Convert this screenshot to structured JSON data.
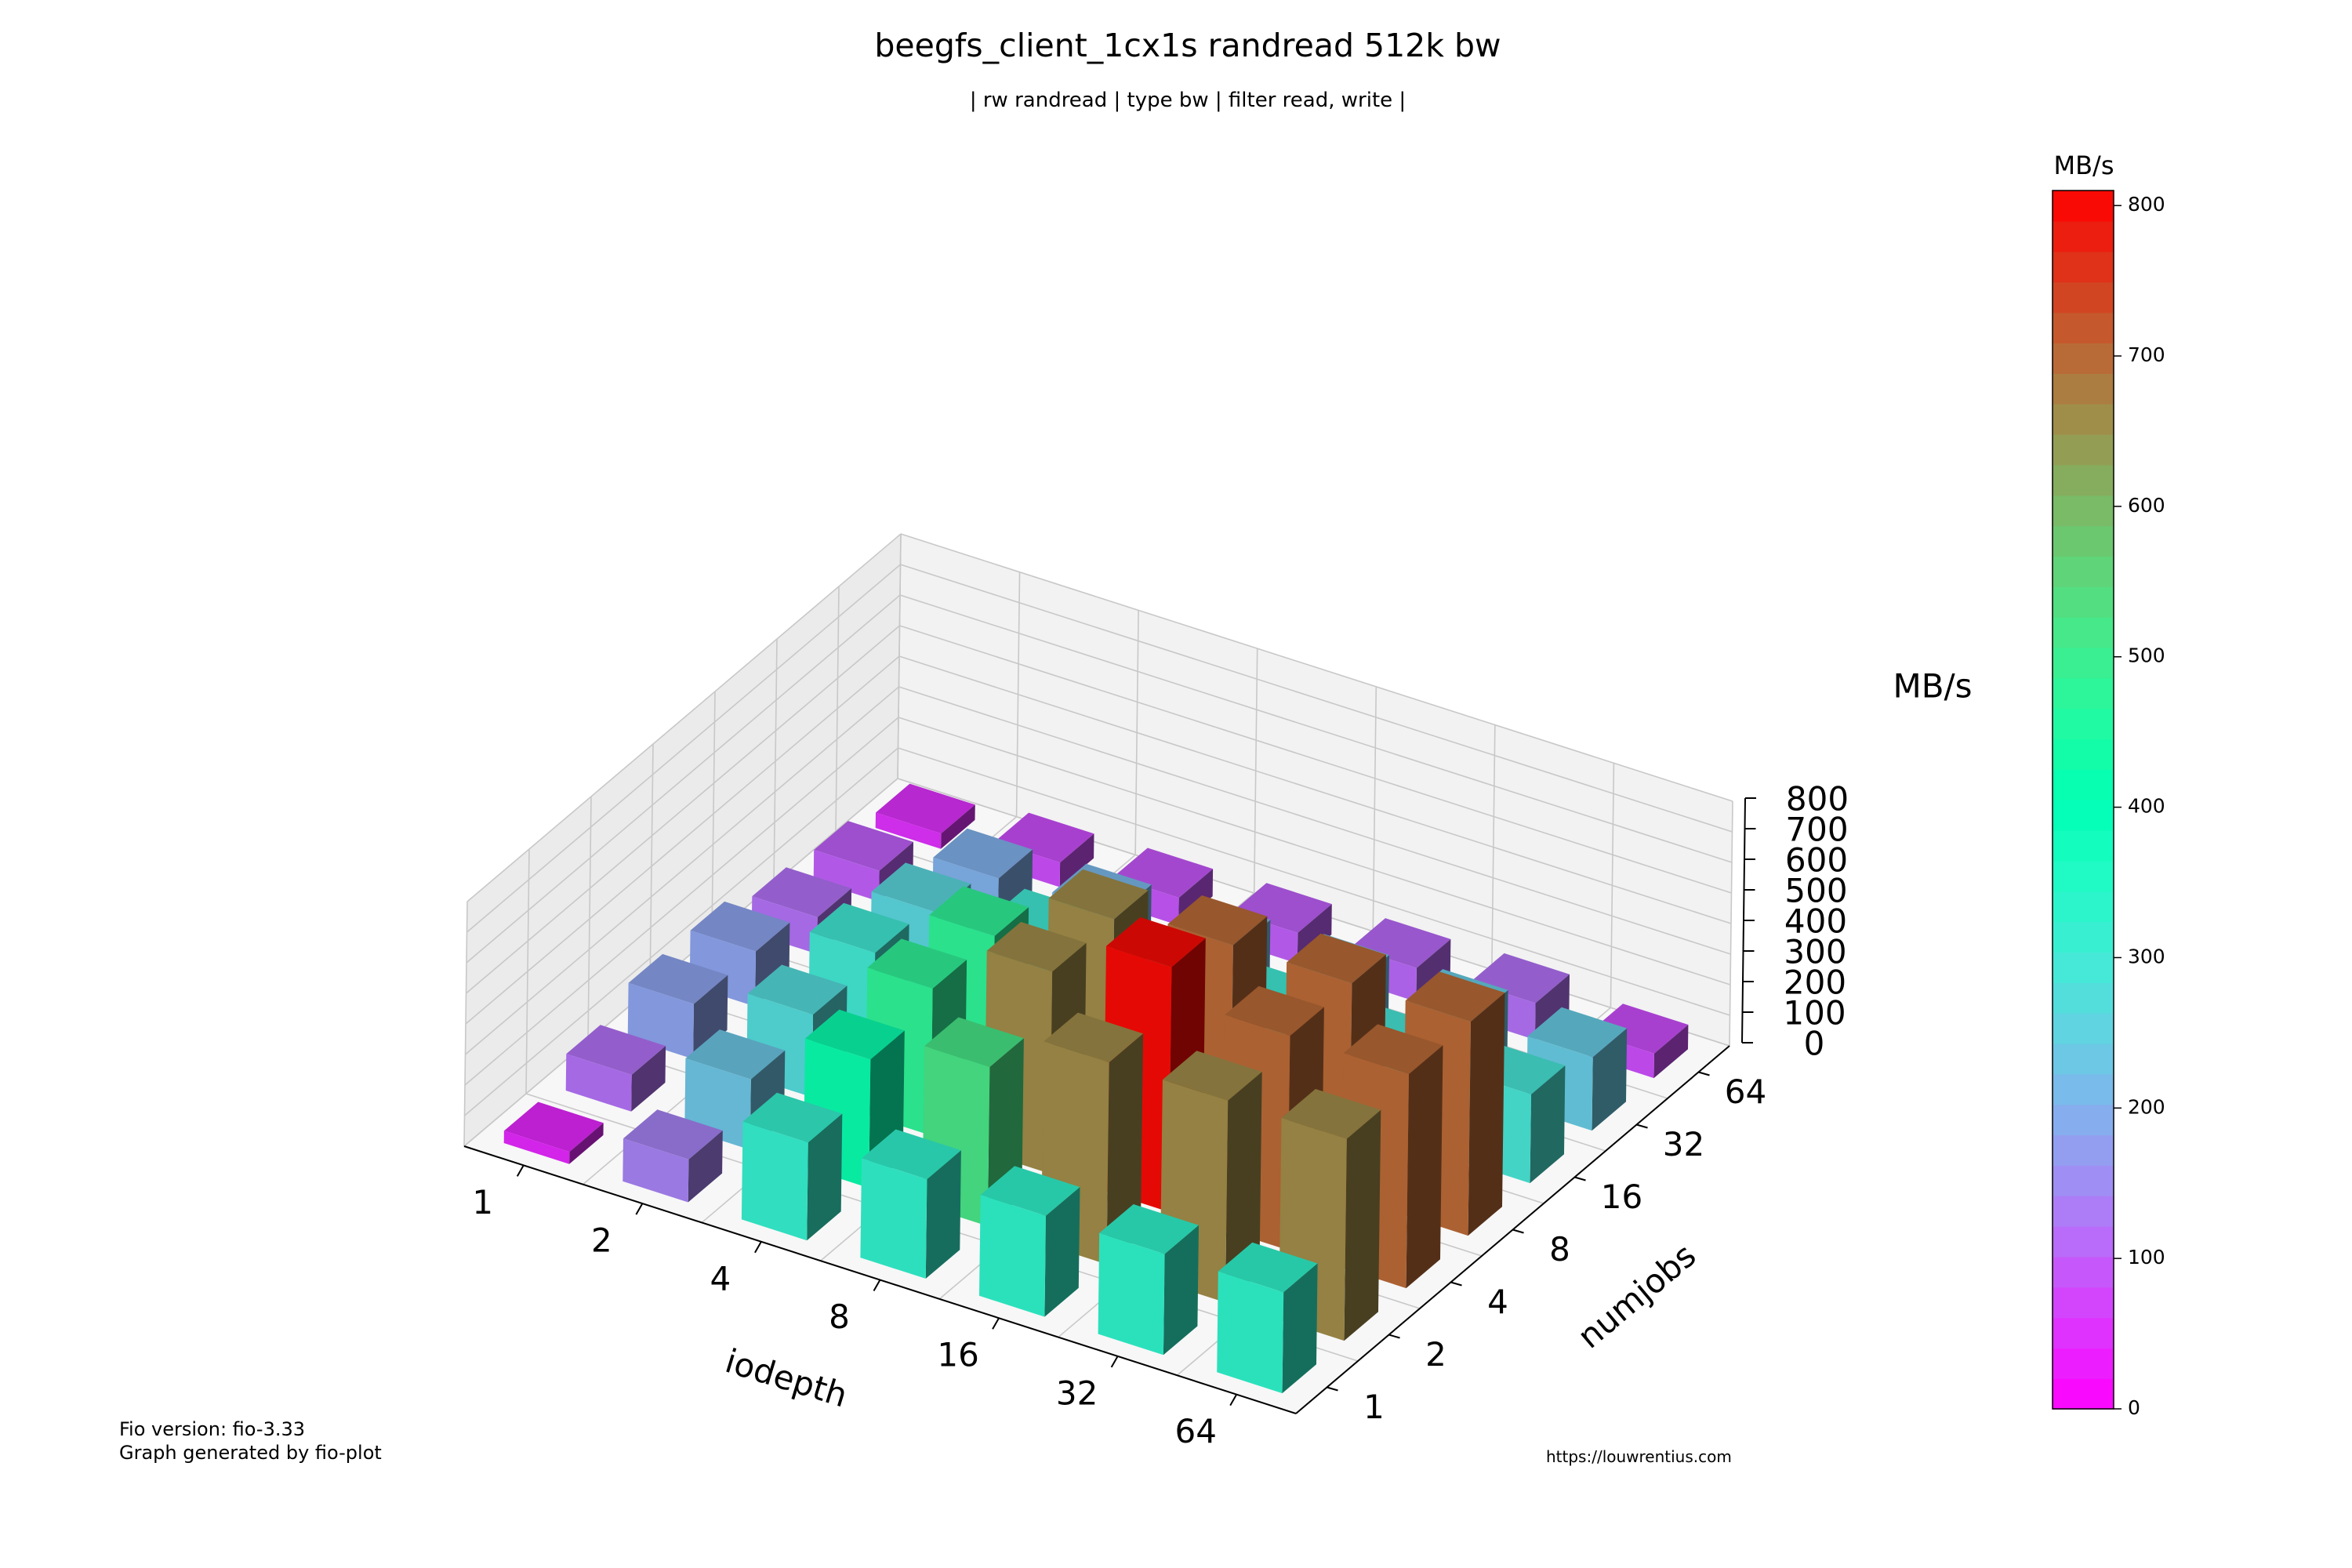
{
  "title": "beegfs_client_1cx1s randread 512k bw",
  "subtitle": "| rw randread | type bw | filter read, write |",
  "footer": {
    "fio_version": "Fio version: fio-3.33",
    "generator": "Graph generated by fio-plot",
    "url": "https://louwrentius.com"
  },
  "colorbar": {
    "label": "MB/s",
    "ticks": [
      0,
      100,
      200,
      300,
      400,
      500,
      600,
      700,
      800
    ],
    "range": [
      0,
      810
    ],
    "colormap": "rainbow"
  },
  "chart_data": {
    "type": "bar3d",
    "title": "beegfs_client_1cx1s randread 512k bw",
    "subtitle": "| rw randread | type bw | filter read, write |",
    "xlabel": "iodepth",
    "ylabel": "numjobs",
    "zlabel": "MB/s",
    "x_categories": [
      "1",
      "2",
      "4",
      "8",
      "16",
      "32",
      "64"
    ],
    "y_categories": [
      "1",
      "2",
      "4",
      "8",
      "16",
      "32",
      "64"
    ],
    "zlim": [
      0,
      800
    ],
    "z_ticks": [
      0,
      100,
      200,
      300,
      400,
      500,
      600,
      700,
      800
    ],
    "grid": true,
    "values_by_numjobs": {
      "1": [
        40,
        140,
        320,
        325,
        330,
        330,
        330
      ],
      "2": [
        120,
        230,
        420,
        520,
        660,
        660,
        660
      ],
      "4": [
        180,
        270,
        480,
        660,
        800,
        700,
        700
      ],
      "8": [
        180,
        300,
        480,
        660,
        700,
        700,
        700
      ],
      "16": [
        120,
        260,
        300,
        300,
        300,
        290,
        290
      ],
      "32": [
        100,
        200,
        210,
        220,
        230,
        240,
        240
      ],
      "64": [
        50,
        80,
        90,
        100,
        110,
        120,
        80
      ]
    }
  }
}
